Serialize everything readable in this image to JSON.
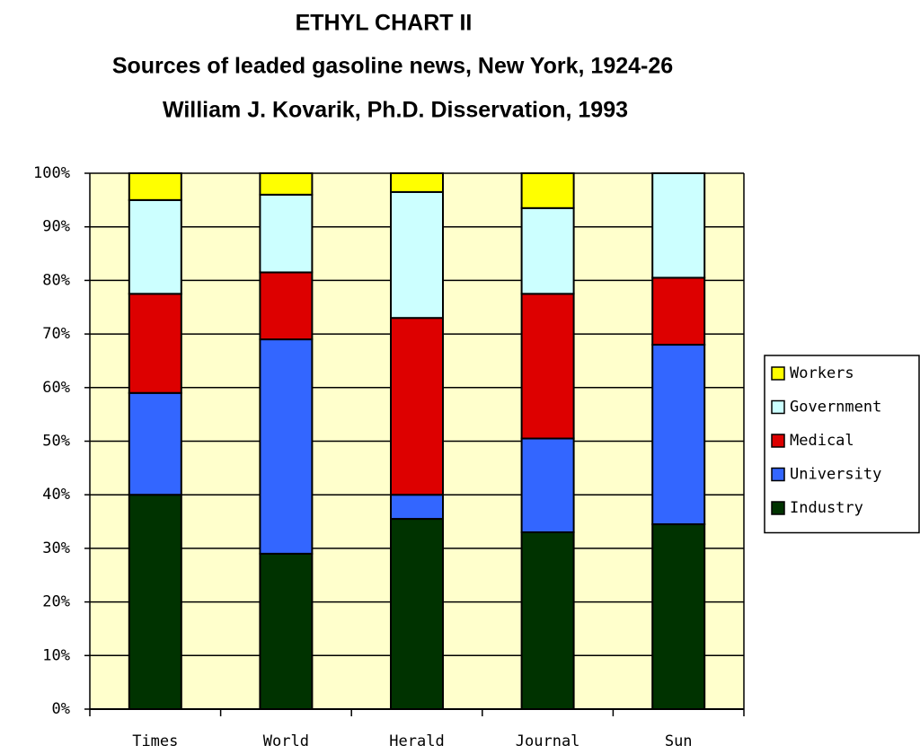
{
  "chart_data": {
    "type": "stacked_bar",
    "title": "ETHYL CHART II",
    "subtitle": "Sources of leaded gasoline news, New York, 1924-26",
    "annotation": "William J. Kovarik, Ph.D. Disservation, 1993",
    "categories": [
      "Times",
      "World",
      "Herald",
      "Journal",
      "Sun"
    ],
    "series": [
      {
        "name": "Industry",
        "color": "#003300",
        "values": [
          40,
          29,
          35.5,
          33,
          34.5
        ]
      },
      {
        "name": "University",
        "color": "#3366ff",
        "values": [
          19,
          40,
          4.5,
          17.5,
          33.5
        ]
      },
      {
        "name": "Medical",
        "color": "#dd0000",
        "values": [
          18.5,
          12.5,
          33,
          27,
          12.5
        ]
      },
      {
        "name": "Government",
        "color": "#ccffff",
        "values": [
          17.5,
          14.5,
          23.5,
          16,
          19.5
        ]
      },
      {
        "name": "Workers",
        "color": "#ffff00",
        "values": [
          5,
          4,
          3.5,
          6.5,
          0
        ]
      }
    ],
    "ylim": [
      0,
      100
    ],
    "yticks": [
      {
        "value": 0,
        "label": "0%"
      },
      {
        "value": 10,
        "label": "10%"
      },
      {
        "value": 20,
        "label": "20%"
      },
      {
        "value": 30,
        "label": "30%"
      },
      {
        "value": 40,
        "label": "40%"
      },
      {
        "value": 50,
        "label": "50%"
      },
      {
        "value": 60,
        "label": "60%"
      },
      {
        "value": 70,
        "label": "70%"
      },
      {
        "value": 80,
        "label": "80%"
      },
      {
        "value": 90,
        "label": "90%"
      },
      {
        "value": 100,
        "label": "100%"
      }
    ],
    "grid": true,
    "plot_background": "#ffffcc",
    "legend": "right"
  }
}
